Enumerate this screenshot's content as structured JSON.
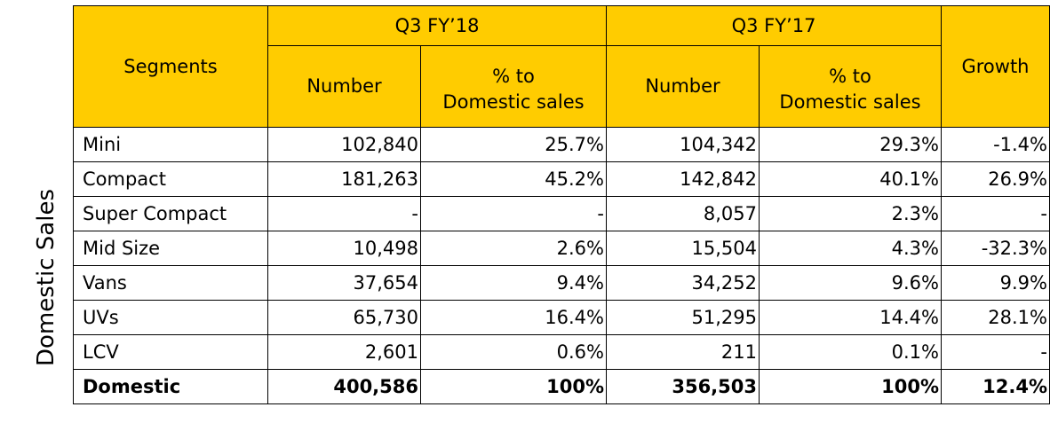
{
  "side_label": "Domestic Sales",
  "colors": {
    "header_bg": "#FFCC00",
    "border": "#000000"
  },
  "header": {
    "segments": "Segments",
    "period_a": "Q3 FY’18",
    "period_b": "Q3 FY’17",
    "growth": "Growth",
    "number": "Number",
    "pct_line1": "% to",
    "pct_line2": "Domestic sales"
  },
  "chart_data": {
    "type": "table",
    "columns": [
      "Segments",
      "Q3 FY’18 Number",
      "Q3 FY’18 % to Domestic sales",
      "Q3 FY’17 Number",
      "Q3 FY’17 % to Domestic sales",
      "Growth"
    ],
    "rows": [
      {
        "segment": "Mini",
        "fy18_number": "102,840",
        "fy18_pct": "25.7%",
        "fy17_number": "104,342",
        "fy17_pct": "29.3%",
        "growth": "-1.4%"
      },
      {
        "segment": "Compact",
        "fy18_number": "181,263",
        "fy18_pct": "45.2%",
        "fy17_number": "142,842",
        "fy17_pct": "40.1%",
        "growth": "26.9%"
      },
      {
        "segment": "Super Compact",
        "fy18_number": "-",
        "fy18_pct": "-",
        "fy17_number": "8,057",
        "fy17_pct": "2.3%",
        "growth": "-"
      },
      {
        "segment": "Mid Size",
        "fy18_number": "10,498",
        "fy18_pct": "2.6%",
        "fy17_number": "15,504",
        "fy17_pct": "4.3%",
        "growth": "-32.3%"
      },
      {
        "segment": "Vans",
        "fy18_number": "37,654",
        "fy18_pct": "9.4%",
        "fy17_number": "34,252",
        "fy17_pct": "9.6%",
        "growth": "9.9%"
      },
      {
        "segment": "UVs",
        "fy18_number": "65,730",
        "fy18_pct": "16.4%",
        "fy17_number": "51,295",
        "fy17_pct": "14.4%",
        "growth": "28.1%"
      },
      {
        "segment": "LCV",
        "fy18_number": "2,601",
        "fy18_pct": "0.6%",
        "fy17_number": "211",
        "fy17_pct": "0.1%",
        "growth": "-"
      }
    ],
    "total": {
      "segment": "Domestic",
      "fy18_number": "400,586",
      "fy18_pct": "100%",
      "fy17_number": "356,503",
      "fy17_pct": "100%",
      "growth": "12.4%"
    }
  }
}
